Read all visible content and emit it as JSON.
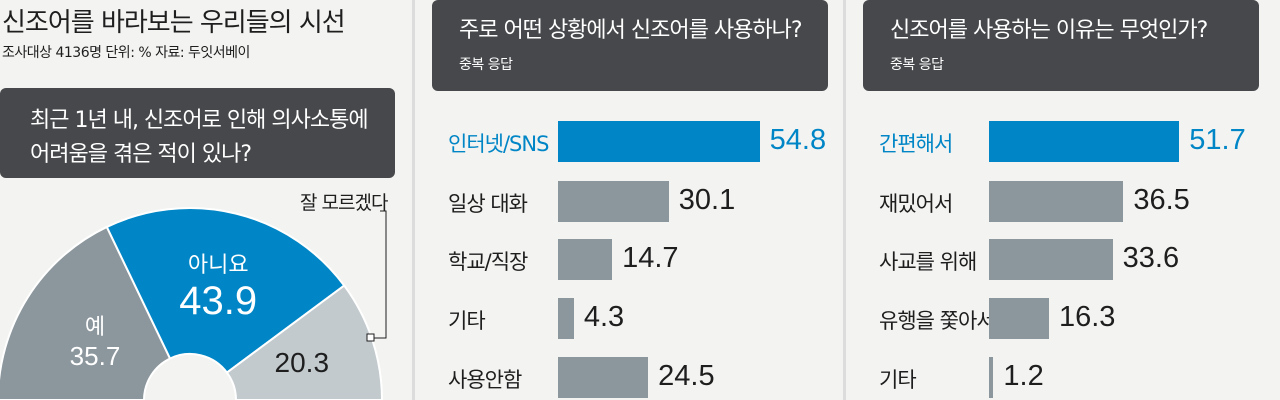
{
  "header": {
    "title": "신조어를 바라보는 우리들의 시선",
    "source": "조사대상 4136명  단위: %  자료: 두잇서베이"
  },
  "panel1": {
    "question": [
      "최근 1년 내, 신조어로 인해 의사소통에",
      "어려움을 겪은 적이 있나?"
    ],
    "callout": "잘 모르겠다"
  },
  "panel2": {
    "question": "주로 어떤 상황에서 신조어를 사용하나?",
    "note": "중복 응답"
  },
  "panel3": {
    "question": "신조어를 사용하는 이유는 무엇인가?",
    "note": "중복 응답"
  },
  "colors": {
    "highlight": "#0086c6",
    "gray": "#8b969d",
    "light_gray": "#c2cace",
    "box": "#46484b"
  },
  "chart_data": [
    {
      "type": "pie",
      "title": "최근 1년 내, 신조어로 인해 의사소통에 어려움을 겪은 적이 있나?",
      "slices": [
        {
          "label": "예",
          "value": 35.7
        },
        {
          "label": "아니요",
          "value": 43.9
        },
        {
          "label": "잘 모르겠다",
          "value": 20.3
        }
      ]
    },
    {
      "type": "bar",
      "title": "주로 어떤 상황에서 신조어를 사용하나?",
      "categories": [
        "인터넷/SNS",
        "일상 대화",
        "학교/직장",
        "기타",
        "사용안함"
      ],
      "values": [
        54.8,
        30.1,
        14.7,
        4.3,
        24.5
      ],
      "highlight_index": 0
    },
    {
      "type": "bar",
      "title": "신조어를 사용하는 이유는 무엇인가?",
      "categories": [
        "간편해서",
        "재밌어서",
        "사교를 위해",
        "유행을 쫓아서",
        "기타"
      ],
      "values": [
        51.7,
        36.5,
        33.6,
        16.3,
        1.2
      ],
      "highlight_index": 0
    }
  ]
}
